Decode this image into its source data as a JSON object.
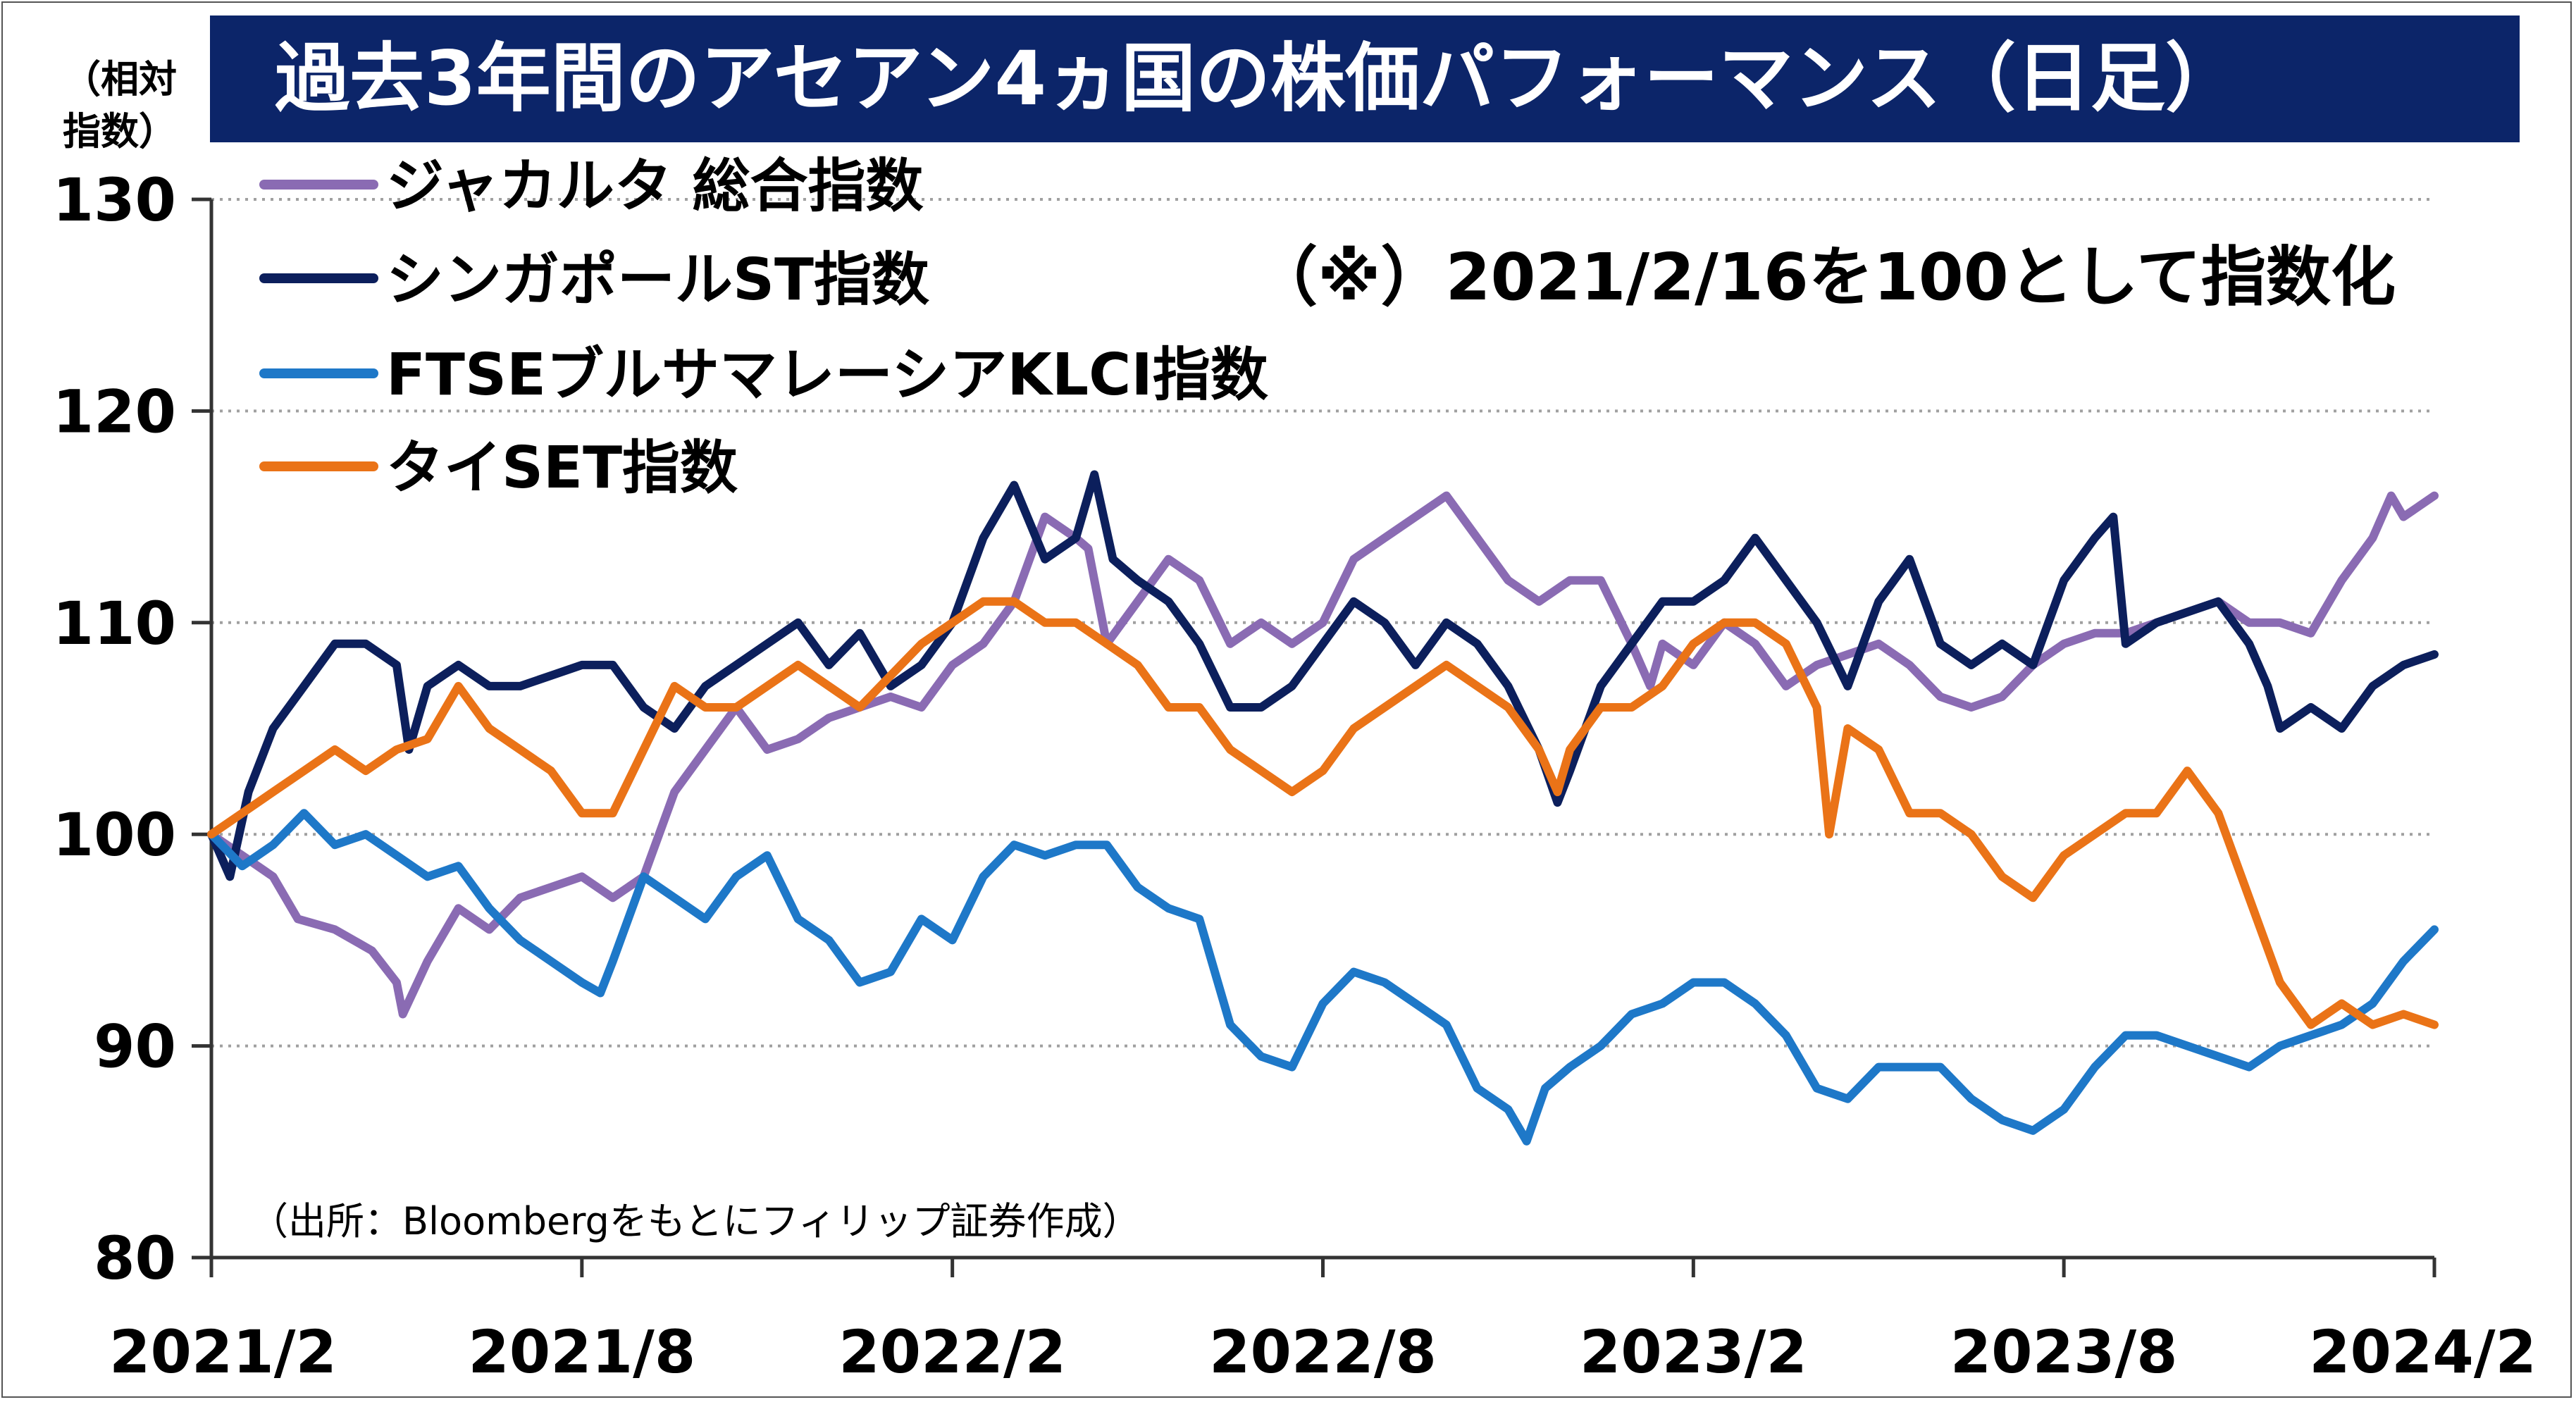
{
  "title": "過去3年間のアセアン4ヵ国の株価パフォーマンス（日足）",
  "unit_label_line1": "（相対",
  "unit_label_line2": "指数）",
  "note": "（※）2021/2/16を100として指数化",
  "source": "（出所：Bloombergをもとにフィリップ証券作成）",
  "colors": {
    "jakarta": "#8a6bb3",
    "singapore": "#0c1f5c",
    "malaysia": "#1e78c8",
    "thailand": "#ea7317",
    "title_bg": "#0c2569",
    "grid": "#a0a0a0"
  },
  "chart_data": {
    "type": "line",
    "ylim": [
      80,
      130
    ],
    "yticks": [
      80,
      90,
      100,
      110,
      120,
      130
    ],
    "xlim": [
      0,
      36
    ],
    "xticks": [
      {
        "v": 0,
        "label": "2021/2"
      },
      {
        "v": 6,
        "label": "2021/8"
      },
      {
        "v": 12,
        "label": "2022/2"
      },
      {
        "v": 18,
        "label": "2022/8"
      },
      {
        "v": 24,
        "label": "2023/2"
      },
      {
        "v": 30,
        "label": "2023/8"
      },
      {
        "v": 36,
        "label": "2024/2"
      }
    ],
    "grid": true,
    "legend_position": "top-left",
    "series": [
      {
        "name": "ジャカルタ 総合指数",
        "color_key": "jakarta",
        "points": [
          [
            0,
            100
          ],
          [
            0.5,
            99
          ],
          [
            1,
            98
          ],
          [
            1.4,
            96
          ],
          [
            2,
            95.5
          ],
          [
            2.6,
            94.5
          ],
          [
            3,
            93
          ],
          [
            3.1,
            91.5
          ],
          [
            3.5,
            94
          ],
          [
            4,
            96.5
          ],
          [
            4.5,
            95.5
          ],
          [
            5,
            97
          ],
          [
            5.5,
            97.5
          ],
          [
            6,
            98
          ],
          [
            6.5,
            97
          ],
          [
            7,
            98
          ],
          [
            7.5,
            102
          ],
          [
            8,
            104
          ],
          [
            8.5,
            106
          ],
          [
            9,
            104
          ],
          [
            9.5,
            104.5
          ],
          [
            10,
            105.5
          ],
          [
            10.5,
            106
          ],
          [
            11,
            106.5
          ],
          [
            11.5,
            106
          ],
          [
            12,
            108
          ],
          [
            12.5,
            109
          ],
          [
            13,
            111
          ],
          [
            13.5,
            115
          ],
          [
            14,
            114
          ],
          [
            14.2,
            113.5
          ],
          [
            14.5,
            109
          ],
          [
            15,
            111
          ],
          [
            15.5,
            113
          ],
          [
            16,
            112
          ],
          [
            16.5,
            109
          ],
          [
            17,
            110
          ],
          [
            17.5,
            109
          ],
          [
            18,
            110
          ],
          [
            18.5,
            113
          ],
          [
            19,
            114
          ],
          [
            19.5,
            115
          ],
          [
            20,
            116
          ],
          [
            20.5,
            114
          ],
          [
            21,
            112
          ],
          [
            21.5,
            111
          ],
          [
            22,
            112
          ],
          [
            22.5,
            112
          ],
          [
            23,
            109
          ],
          [
            23.3,
            107
          ],
          [
            23.5,
            109
          ],
          [
            24,
            108
          ],
          [
            24.5,
            110
          ],
          [
            25,
            109
          ],
          [
            25.5,
            107
          ],
          [
            26,
            108
          ],
          [
            26.5,
            108.5
          ],
          [
            27,
            109
          ],
          [
            27.5,
            108
          ],
          [
            28,
            106.5
          ],
          [
            28.5,
            106
          ],
          [
            29,
            106.5
          ],
          [
            29.5,
            108
          ],
          [
            30,
            109
          ],
          [
            30.5,
            109.5
          ],
          [
            31,
            109.5
          ],
          [
            31.5,
            110
          ],
          [
            32,
            110.5
          ],
          [
            32.5,
            111
          ],
          [
            33,
            110
          ],
          [
            33.5,
            110
          ],
          [
            34,
            109.5
          ],
          [
            34.5,
            112
          ],
          [
            35,
            114
          ],
          [
            35.3,
            116
          ],
          [
            35.5,
            115
          ],
          [
            36,
            116
          ]
        ]
      },
      {
        "name": "シンガポールST指数",
        "color_key": "singapore",
        "points": [
          [
            0,
            100
          ],
          [
            0.3,
            98
          ],
          [
            0.6,
            102
          ],
          [
            1,
            105
          ],
          [
            1.5,
            107
          ],
          [
            2,
            109
          ],
          [
            2.5,
            109
          ],
          [
            3,
            108
          ],
          [
            3.2,
            104
          ],
          [
            3.5,
            107
          ],
          [
            4,
            108
          ],
          [
            4.5,
            107
          ],
          [
            5,
            107
          ],
          [
            5.5,
            107.5
          ],
          [
            6,
            108
          ],
          [
            6.5,
            108
          ],
          [
            7,
            106
          ],
          [
            7.5,
            105
          ],
          [
            8,
            107
          ],
          [
            8.5,
            108
          ],
          [
            9,
            109
          ],
          [
            9.5,
            110
          ],
          [
            10,
            108
          ],
          [
            10.5,
            109.5
          ],
          [
            11,
            107
          ],
          [
            11.5,
            108
          ],
          [
            12,
            110
          ],
          [
            12.5,
            114
          ],
          [
            13,
            116.5
          ],
          [
            13.5,
            113
          ],
          [
            14,
            114
          ],
          [
            14.3,
            117
          ],
          [
            14.6,
            113
          ],
          [
            15,
            112
          ],
          [
            15.5,
            111
          ],
          [
            16,
            109
          ],
          [
            16.5,
            106
          ],
          [
            17,
            106
          ],
          [
            17.5,
            107
          ],
          [
            18,
            109
          ],
          [
            18.5,
            111
          ],
          [
            19,
            110
          ],
          [
            19.5,
            108
          ],
          [
            20,
            110
          ],
          [
            20.5,
            109
          ],
          [
            21,
            107
          ],
          [
            21.5,
            104
          ],
          [
            21.8,
            101.5
          ],
          [
            22,
            103
          ],
          [
            22.5,
            107
          ],
          [
            23,
            109
          ],
          [
            23.5,
            111
          ],
          [
            24,
            111
          ],
          [
            24.5,
            112
          ],
          [
            25,
            114
          ],
          [
            25.5,
            112
          ],
          [
            26,
            110
          ],
          [
            26.5,
            107
          ],
          [
            27,
            111
          ],
          [
            27.5,
            113
          ],
          [
            28,
            109
          ],
          [
            28.5,
            108
          ],
          [
            29,
            109
          ],
          [
            29.5,
            108
          ],
          [
            30,
            112
          ],
          [
            30.5,
            114
          ],
          [
            30.8,
            115
          ],
          [
            31,
            109
          ],
          [
            31.5,
            110
          ],
          [
            32,
            110.5
          ],
          [
            32.5,
            111
          ],
          [
            33,
            109
          ],
          [
            33.3,
            107
          ],
          [
            33.5,
            105
          ],
          [
            34,
            106
          ],
          [
            34.5,
            105
          ],
          [
            35,
            107
          ],
          [
            35.5,
            108
          ],
          [
            36,
            108.5
          ]
        ]
      },
      {
        "name": "FTSEブルサマレーシアKLCI指数",
        "color_key": "malaysia",
        "points": [
          [
            0,
            100
          ],
          [
            0.5,
            98.5
          ],
          [
            1,
            99.5
          ],
          [
            1.5,
            101
          ],
          [
            2,
            99.5
          ],
          [
            2.5,
            100
          ],
          [
            3,
            99
          ],
          [
            3.5,
            98
          ],
          [
            4,
            98.5
          ],
          [
            4.5,
            96.5
          ],
          [
            5,
            95
          ],
          [
            5.5,
            94
          ],
          [
            6,
            93
          ],
          [
            6.3,
            92.5
          ],
          [
            6.5,
            94
          ],
          [
            7,
            98
          ],
          [
            7.5,
            97
          ],
          [
            8,
            96
          ],
          [
            8.5,
            98
          ],
          [
            9,
            99
          ],
          [
            9.5,
            96
          ],
          [
            10,
            95
          ],
          [
            10.5,
            93
          ],
          [
            11,
            93.5
          ],
          [
            11.5,
            96
          ],
          [
            12,
            95
          ],
          [
            12.5,
            98
          ],
          [
            13,
            99.5
          ],
          [
            13.5,
            99
          ],
          [
            14,
            99.5
          ],
          [
            14.5,
            99.5
          ],
          [
            15,
            97.5
          ],
          [
            15.5,
            96.5
          ],
          [
            16,
            96
          ],
          [
            16.5,
            91
          ],
          [
            17,
            89.5
          ],
          [
            17.5,
            89
          ],
          [
            18,
            92
          ],
          [
            18.5,
            93.5
          ],
          [
            19,
            93
          ],
          [
            19.5,
            92
          ],
          [
            20,
            91
          ],
          [
            20.5,
            88
          ],
          [
            21,
            87
          ],
          [
            21.3,
            85.5
          ],
          [
            21.6,
            88
          ],
          [
            22,
            89
          ],
          [
            22.5,
            90
          ],
          [
            23,
            91.5
          ],
          [
            23.5,
            92
          ],
          [
            24,
            93
          ],
          [
            24.5,
            93
          ],
          [
            25,
            92
          ],
          [
            25.5,
            90.5
          ],
          [
            26,
            88
          ],
          [
            26.5,
            87.5
          ],
          [
            27,
            89
          ],
          [
            27.5,
            89
          ],
          [
            28,
            89
          ],
          [
            28.5,
            87.5
          ],
          [
            29,
            86.5
          ],
          [
            29.5,
            86
          ],
          [
            30,
            87
          ],
          [
            30.5,
            89
          ],
          [
            31,
            90.5
          ],
          [
            31.5,
            90.5
          ],
          [
            32,
            90
          ],
          [
            32.5,
            89.5
          ],
          [
            33,
            89
          ],
          [
            33.5,
            90
          ],
          [
            34,
            90.5
          ],
          [
            34.5,
            91
          ],
          [
            35,
            92
          ],
          [
            35.5,
            94
          ],
          [
            36,
            95.5
          ]
        ]
      },
      {
        "name": "タイSET指数",
        "color_key": "thailand",
        "points": [
          [
            0,
            100
          ],
          [
            0.5,
            101
          ],
          [
            1,
            102
          ],
          [
            1.5,
            103
          ],
          [
            2,
            104
          ],
          [
            2.5,
            103
          ],
          [
            3,
            104
          ],
          [
            3.5,
            104.5
          ],
          [
            4,
            107
          ],
          [
            4.5,
            105
          ],
          [
            5,
            104
          ],
          [
            5.5,
            103
          ],
          [
            6,
            101
          ],
          [
            6.5,
            101
          ],
          [
            7,
            104
          ],
          [
            7.5,
            107
          ],
          [
            8,
            106
          ],
          [
            8.5,
            106
          ],
          [
            9,
            107
          ],
          [
            9.5,
            108
          ],
          [
            10,
            107
          ],
          [
            10.5,
            106
          ],
          [
            11,
            107.5
          ],
          [
            11.5,
            109
          ],
          [
            12,
            110
          ],
          [
            12.5,
            111
          ],
          [
            13,
            111
          ],
          [
            13.5,
            110
          ],
          [
            14,
            110
          ],
          [
            14.5,
            109
          ],
          [
            15,
            108
          ],
          [
            15.5,
            106
          ],
          [
            16,
            106
          ],
          [
            16.5,
            104
          ],
          [
            17,
            103
          ],
          [
            17.5,
            102
          ],
          [
            18,
            103
          ],
          [
            18.5,
            105
          ],
          [
            19,
            106
          ],
          [
            19.5,
            107
          ],
          [
            20,
            108
          ],
          [
            20.5,
            107
          ],
          [
            21,
            106
          ],
          [
            21.5,
            104
          ],
          [
            21.8,
            102
          ],
          [
            22,
            104
          ],
          [
            22.5,
            106
          ],
          [
            23,
            106
          ],
          [
            23.5,
            107
          ],
          [
            24,
            109
          ],
          [
            24.5,
            110
          ],
          [
            25,
            110
          ],
          [
            25.5,
            109
          ],
          [
            26,
            106
          ],
          [
            26.2,
            100
          ],
          [
            26.5,
            105
          ],
          [
            27,
            104
          ],
          [
            27.5,
            101
          ],
          [
            28,
            101
          ],
          [
            28.5,
            100
          ],
          [
            29,
            98
          ],
          [
            29.5,
            97
          ],
          [
            30,
            99
          ],
          [
            30.5,
            100
          ],
          [
            31,
            101
          ],
          [
            31.5,
            101
          ],
          [
            32,
            103
          ],
          [
            32.5,
            101
          ],
          [
            33,
            97
          ],
          [
            33.5,
            93
          ],
          [
            34,
            91
          ],
          [
            34.5,
            92
          ],
          [
            35,
            91
          ],
          [
            35.5,
            91.5
          ],
          [
            36,
            91
          ]
        ]
      }
    ]
  }
}
